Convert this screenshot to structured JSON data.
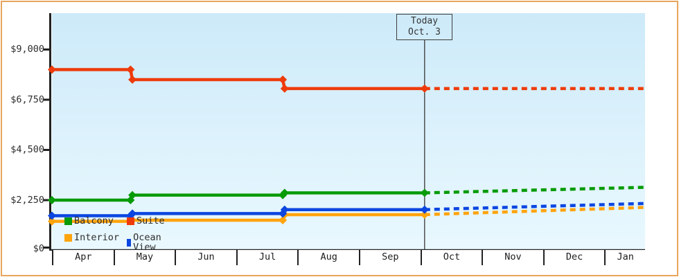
{
  "accent_colors": {
    "frame_border": "#e8a55c",
    "plot_top": "#cdeaf9",
    "plot_bottom": "#e9f8fe",
    "axis": "#222222",
    "today_line": "#444444"
  },
  "legend": {
    "items": [
      {
        "label": "Balcony",
        "color": "#079b07"
      },
      {
        "label": "Suite",
        "color": "#ee3b0b"
      },
      {
        "label": "Interior",
        "color": "#ffa40d"
      },
      {
        "label": "Ocean View",
        "color": "#0b46e0"
      }
    ]
  },
  "chart_data": {
    "type": "line",
    "title": "",
    "xlabel": "",
    "ylabel": "",
    "x_months": [
      "Apr",
      "May",
      "Jun",
      "Jul",
      "Aug",
      "Sep",
      "Oct",
      "Nov",
      "Dec",
      "Jan"
    ],
    "y_ticks": [
      {
        "label": "$9,000",
        "v": 9000
      },
      {
        "label": "$6,750",
        "v": 6750
      },
      {
        "label": "$4,500",
        "v": 4500
      },
      {
        "label": "$2,250",
        "v": 2250
      },
      {
        "label": "$0",
        "v": 0
      }
    ],
    "ylim": [
      0,
      10600
    ],
    "grid": false,
    "legend_position": "bottom-left-inside",
    "today": {
      "line1": "Today",
      "line2": "Oct. 3",
      "m": 6.07
    },
    "x_axis_span_months": 9.66,
    "series": [
      {
        "name": "Suite",
        "color": "#ee3b0b",
        "solid": [
          {
            "m": 0,
            "v": 8100
          },
          {
            "m": 1.28,
            "v": 8100
          },
          {
            "m": 1.31,
            "v": 7650
          },
          {
            "m": 3.76,
            "v": 7650
          },
          {
            "m": 3.79,
            "v": 7250
          },
          {
            "m": 6.07,
            "v": 7250
          }
        ],
        "forecast": [
          {
            "m": 6.07,
            "v": 7250
          },
          {
            "m": 9.66,
            "v": 7250
          }
        ]
      },
      {
        "name": "Balcony",
        "color": "#079b07",
        "solid": [
          {
            "m": 0,
            "v": 2250
          },
          {
            "m": 1.28,
            "v": 2250
          },
          {
            "m": 1.31,
            "v": 2475
          },
          {
            "m": 3.76,
            "v": 2475
          },
          {
            "m": 3.79,
            "v": 2575
          },
          {
            "m": 6.07,
            "v": 2575
          }
        ],
        "forecast": [
          {
            "m": 6.07,
            "v": 2575
          },
          {
            "m": 9.66,
            "v": 2825
          }
        ]
      },
      {
        "name": "Interior",
        "color": "#ffa40d",
        "solid": [
          {
            "m": 0,
            "v": 1300
          },
          {
            "m": 1.28,
            "v": 1300
          },
          {
            "m": 1.31,
            "v": 1350
          },
          {
            "m": 3.76,
            "v": 1350
          },
          {
            "m": 3.79,
            "v": 1600
          },
          {
            "m": 6.07,
            "v": 1600
          }
        ],
        "forecast": [
          {
            "m": 6.07,
            "v": 1600
          },
          {
            "m": 9.66,
            "v": 1925
          }
        ]
      },
      {
        "name": "Ocean View",
        "color": "#0b46e0",
        "solid": [
          {
            "m": 0,
            "v": 1550
          },
          {
            "m": 1.28,
            "v": 1550
          },
          {
            "m": 1.31,
            "v": 1650
          },
          {
            "m": 3.76,
            "v": 1650
          },
          {
            "m": 3.79,
            "v": 1825
          },
          {
            "m": 6.07,
            "v": 1825
          }
        ],
        "forecast": [
          {
            "m": 6.07,
            "v": 1825
          },
          {
            "m": 9.66,
            "v": 2100
          }
        ]
      }
    ]
  }
}
